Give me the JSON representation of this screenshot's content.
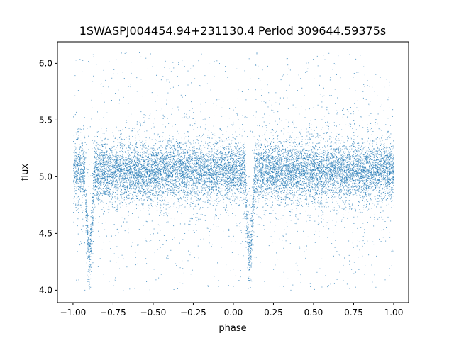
{
  "chart_data": {
    "type": "scatter",
    "title": "1SWASPJ004454.94+231130.4 Period 309644.59375s",
    "xlabel": "phase",
    "ylabel": "flux",
    "xlim": [
      -1.097,
      1.093
    ],
    "ylim": [
      3.89,
      6.19
    ],
    "xticks": [
      "−1.00",
      "−0.75",
      "−0.50",
      "−0.25",
      "0.00",
      "0.25",
      "0.50",
      "0.75",
      "1.00"
    ],
    "xtick_values": [
      -1.0,
      -0.75,
      -0.5,
      -0.25,
      0.0,
      0.25,
      0.5,
      0.75,
      1.0
    ],
    "yticks": [
      "4.0",
      "4.5",
      "5.0",
      "5.5",
      "6.0"
    ],
    "ytick_values": [
      4.0,
      4.5,
      5.0,
      5.5,
      6.0
    ],
    "grid": false,
    "marker_color": "#1f77b4",
    "series": [
      {
        "x_range": [
          -1.0,
          1.0
        ],
        "baseline_flux": 5.05,
        "flux_scatter": 0.12,
        "flux_extent": [
          4.0,
          6.1
        ],
        "eclipses": [
          {
            "phase": -0.9,
            "min_flux": 4.3
          },
          {
            "phase": 0.1,
            "min_flux": 4.3
          }
        ]
      }
    ]
  }
}
